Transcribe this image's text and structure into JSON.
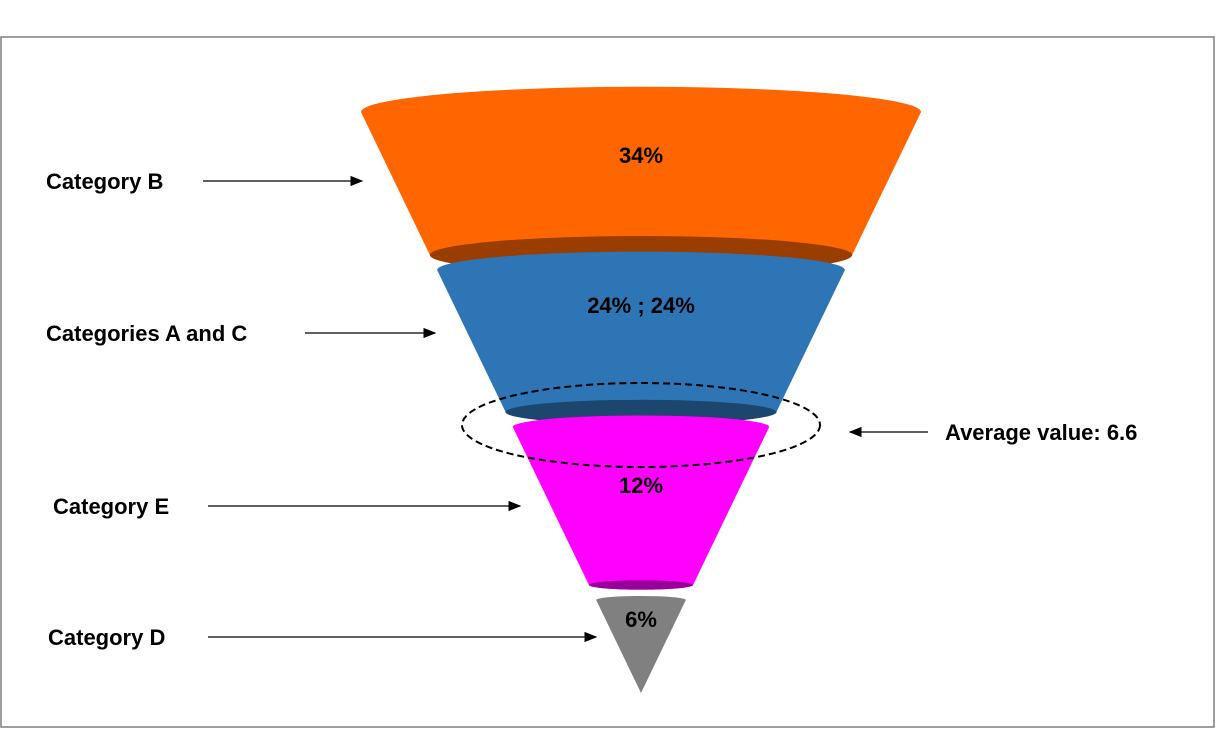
{
  "chart_data": {
    "type": "funnel",
    "categories": [
      "Category B",
      "Categories A and C",
      "Category E",
      "Category D"
    ],
    "values": [
      34,
      24,
      12,
      6
    ],
    "value_labels": [
      "34%",
      "24% ; 24%",
      "12%",
      "6%"
    ],
    "colors": [
      "#ff6600",
      "#2e75b6",
      "#ff00ff",
      "#808080"
    ],
    "annotation": "Average value: 6.6"
  }
}
